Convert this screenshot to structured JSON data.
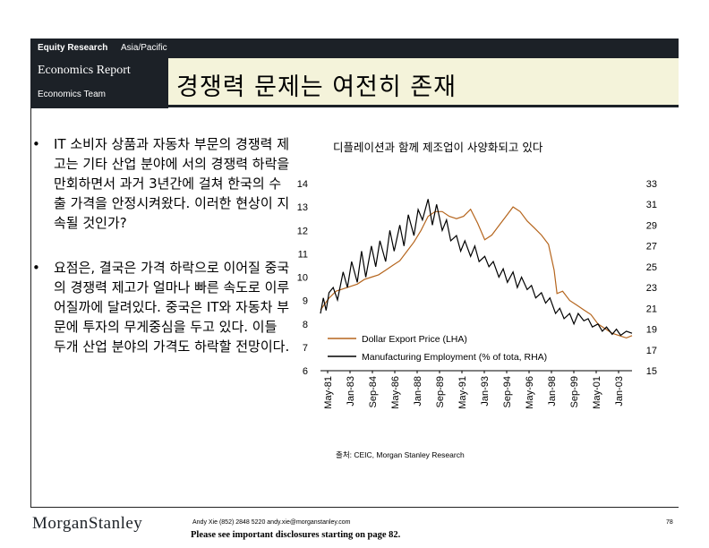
{
  "header": {
    "band_bold": "Equity Research",
    "band_region": "Asia/Pacific",
    "report_type": "Economics Report",
    "team": "Economics Team",
    "title": "경쟁력 문제는 여전히 존재"
  },
  "bullets": [
    {
      "mark": "•",
      "text": "IT 소비자 상품과 자동차 부문의 경쟁력 제고는 기타 산업 분야에 서의 경쟁력 하락을 만회하면서 과거 3년간에 걸쳐 한국의 수출 가격을 안정시켜왔다. 이러한 현상이 지속될 것인가?"
    },
    {
      "mark": "•",
      "text": "요점은, 결국은 가격 하락으로 이어질 중국의 경쟁력 제고가 얼마나 빠른 속도로 이루어질까에 달려있다. 중국은 IT와 자동차 부문에 투자의 무게중심을 두고 있다. 이들 두개 산업 분야의 가격도 하락할 전망이다."
    }
  ],
  "chart": {
    "title": "디플레이션과 함께 제조업이 사양화되고 있다",
    "source": "출처: CEIC, Morgan Stanley Research"
  },
  "chart_data": {
    "type": "line",
    "title": "디플레이션과 함께 제조업이 사양화되고 있다",
    "x_ticks": [
      "May-81",
      "Jan-83",
      "Sep-84",
      "May-86",
      "Jan-88",
      "Sep-89",
      "May-91",
      "Jan-93",
      "Sep-94",
      "May-96",
      "Jan-98",
      "Sep-99",
      "May-01",
      "Jan-03"
    ],
    "y_left": {
      "ticks": [
        6,
        7,
        8,
        9,
        10,
        11,
        12,
        13,
        14
      ],
      "range": [
        6,
        14
      ]
    },
    "y_right": {
      "ticks": [
        15,
        17,
        19,
        21,
        23,
        25,
        27,
        29,
        31,
        33
      ],
      "range": [
        15,
        33
      ]
    },
    "legend_position": "bottom-left",
    "series": [
      {
        "name": "Dollar Export Price (LHA)",
        "axis": "left",
        "color": "#b5651d",
        "x": [
          1981.4,
          1982,
          1982.5,
          1983,
          1983.5,
          1984,
          1984.5,
          1985,
          1985.5,
          1986,
          1986.5,
          1987,
          1987.5,
          1988,
          1988.5,
          1989,
          1989.5,
          1990,
          1990.5,
          1991,
          1991.5,
          1992,
          1992.5,
          1993,
          1993.5,
          1994,
          1994.5,
          1995,
          1995.5,
          1996,
          1996.5,
          1997,
          1997.5,
          1997.9,
          1998.1,
          1998.5,
          1999,
          1999.5,
          2000,
          2000.5,
          2001,
          2001.5,
          2002,
          2002.5,
          2003,
          2003.4
        ],
        "y": [
          8.6,
          9.1,
          9.4,
          9.5,
          9.6,
          9.7,
          9.9,
          10.0,
          10.1,
          10.3,
          10.5,
          10.7,
          11.1,
          11.5,
          12.0,
          12.6,
          12.8,
          12.8,
          12.6,
          12.5,
          12.6,
          12.9,
          12.3,
          11.6,
          11.8,
          12.2,
          12.6,
          13.0,
          12.8,
          12.4,
          12.1,
          11.8,
          11.4,
          10.3,
          9.3,
          9.4,
          9.0,
          8.8,
          8.6,
          8.4,
          8.0,
          7.8,
          7.6,
          7.5,
          7.4,
          7.5
        ]
      },
      {
        "name": "Manufacturing Employment (% of tota, RHA)",
        "axis": "right",
        "color": "#000000",
        "x": [
          1981.4,
          1981.6,
          1981.8,
          1982,
          1982.3,
          1982.6,
          1983,
          1983.3,
          1983.6,
          1984,
          1984.3,
          1984.6,
          1985,
          1985.3,
          1985.6,
          1986,
          1986.3,
          1986.6,
          1987,
          1987.3,
          1987.6,
          1988,
          1988.3,
          1988.6,
          1989,
          1989.3,
          1989.6,
          1990,
          1990.3,
          1990.6,
          1991,
          1991.3,
          1991.6,
          1992,
          1992.3,
          1992.6,
          1993,
          1993.3,
          1993.6,
          1994,
          1994.3,
          1994.6,
          1995,
          1995.3,
          1995.6,
          1996,
          1996.3,
          1996.6,
          1997,
          1997.3,
          1997.6,
          1998,
          1998.3,
          1998.6,
          1999,
          1999.3,
          1999.6,
          2000,
          2000.3,
          2000.6,
          2001,
          2001.3,
          2001.6,
          2002,
          2002.3,
          2002.6,
          2003,
          2003.4
        ],
        "y": [
          20.5,
          22.0,
          20.8,
          22.5,
          23.0,
          21.8,
          24.5,
          23.0,
          25.5,
          23.5,
          26.5,
          24.0,
          27.0,
          25.0,
          27.5,
          25.5,
          28.5,
          26.5,
          29.0,
          27.0,
          30.0,
          28.0,
          30.5,
          29.5,
          31.5,
          29.0,
          31.0,
          28.5,
          29.5,
          27.5,
          28.0,
          26.5,
          27.5,
          26.0,
          27.0,
          25.5,
          26.0,
          25.0,
          25.5,
          24.0,
          24.8,
          23.5,
          24.5,
          23.0,
          24.0,
          22.8,
          23.2,
          22.0,
          22.5,
          21.5,
          22.0,
          20.5,
          21.0,
          20.0,
          20.5,
          19.5,
          20.5,
          19.8,
          20.0,
          19.2,
          19.5,
          18.8,
          19.2,
          18.5,
          19.0,
          18.4,
          18.8,
          18.6
        ]
      }
    ]
  },
  "footer": {
    "logo_a": "Morgan",
    "logo_b": "Stanley",
    "contact": "Andy Xie (852) 2848 5220 andy.xie@morganstanley.com",
    "disclaimer": "Please see important disclosures starting on page 82.",
    "page": "78"
  }
}
